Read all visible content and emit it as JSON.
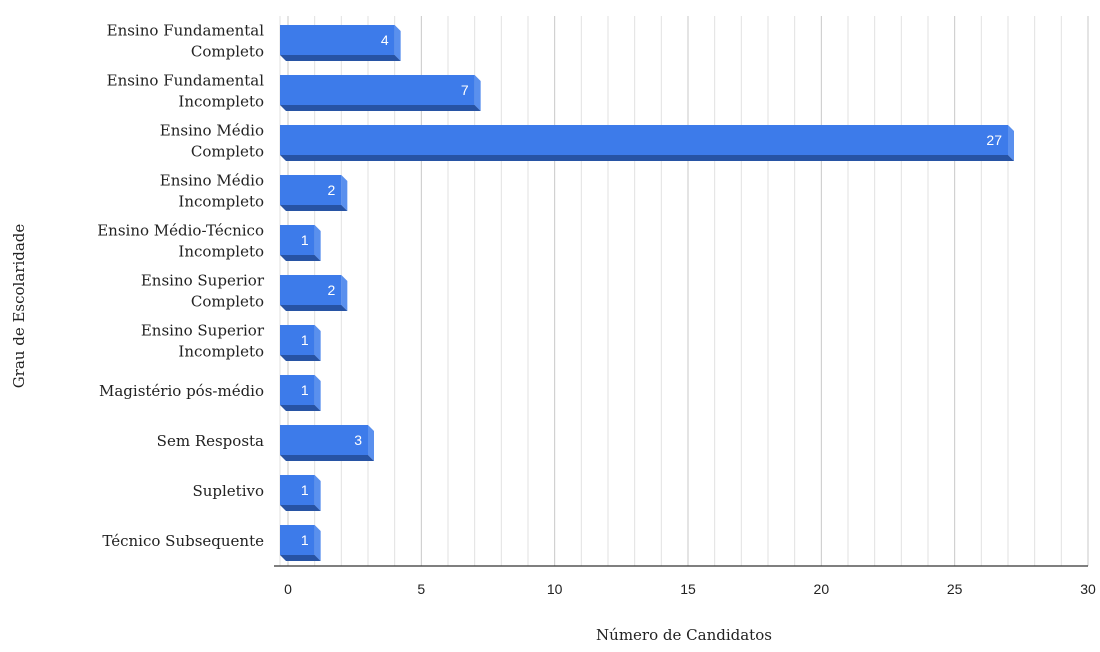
{
  "chart_data": {
    "type": "bar",
    "orientation": "horizontal",
    "categories": [
      [
        "Ensino Fundamental",
        "Completo"
      ],
      [
        "Ensino Fundamental",
        "Incompleto"
      ],
      [
        "Ensino Médio",
        "Completo"
      ],
      [
        "Ensino Médio",
        "Incompleto"
      ],
      [
        "Ensino Médio-Técnico",
        "Incompleto"
      ],
      [
        "Ensino Superior",
        "Completo"
      ],
      [
        "Ensino Superior",
        "Incompleto"
      ],
      [
        "Magistério pós-médio"
      ],
      [
        "Sem Resposta"
      ],
      [
        "Supletivo"
      ],
      [
        "Técnico Subsequente"
      ]
    ],
    "values": [
      4,
      7,
      27,
      2,
      1,
      2,
      1,
      1,
      3,
      1,
      1
    ],
    "xlabel": "Número de Candidatos",
    "ylabel": "Grau de Escolaridade",
    "xlim": [
      0,
      30
    ],
    "xticks": [
      0,
      5,
      10,
      15,
      20,
      25,
      30
    ],
    "grid": true,
    "minor_grid_step": 1,
    "data_labels": true,
    "colors": {
      "bar": "#3d7bea",
      "bar_side": "#5a90ee",
      "bar_bottom": "#2753a4",
      "grid_major": "#c8c8c8",
      "grid_minor": "#e2e2e2",
      "axis": "#333333"
    }
  }
}
